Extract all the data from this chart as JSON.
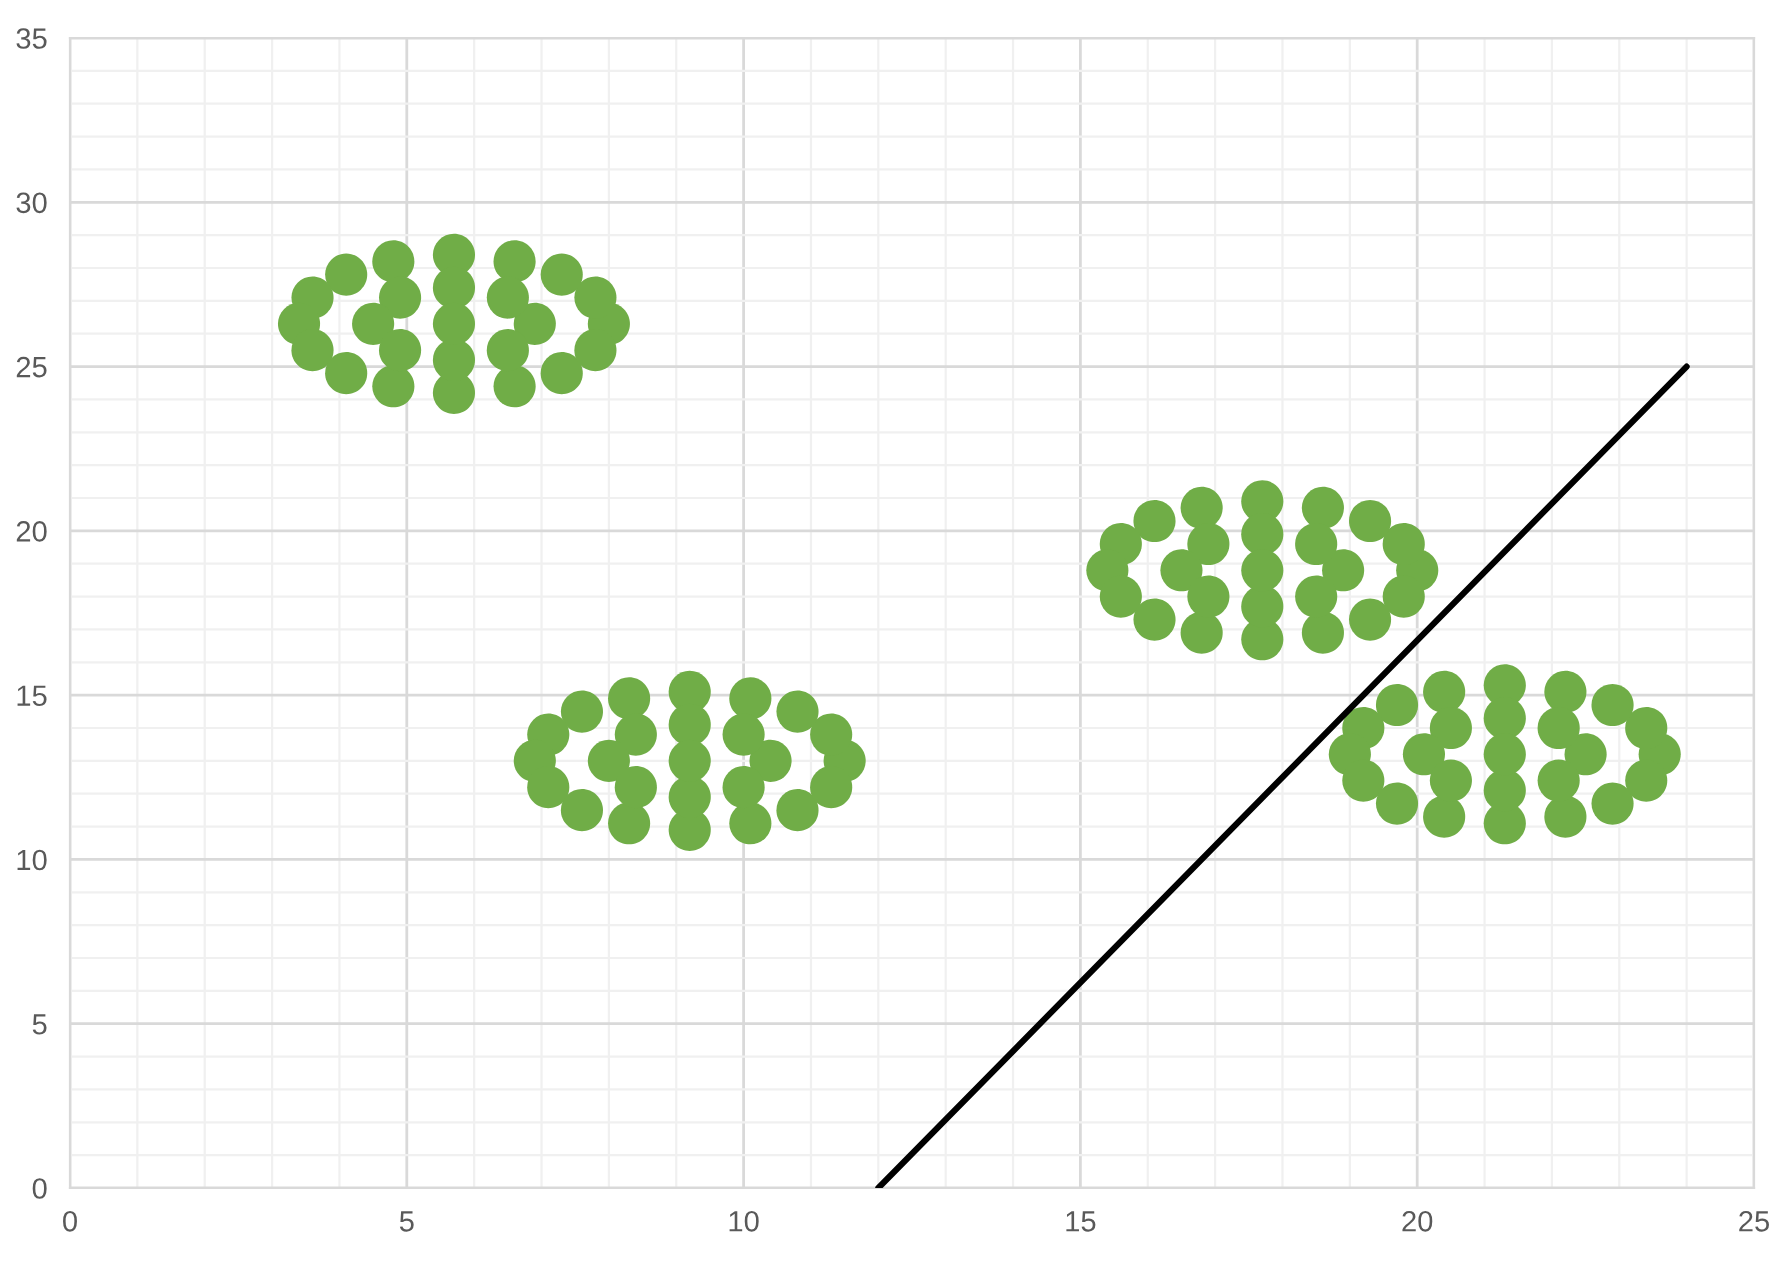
{
  "chart_data": {
    "type": "scatter",
    "xlim": [
      0,
      25
    ],
    "ylim": [
      0,
      35
    ],
    "xticks": [
      0,
      5,
      10,
      15,
      20,
      25
    ],
    "yticks": [
      0,
      5,
      10,
      15,
      20,
      25,
      30,
      35
    ],
    "grid": true,
    "marker": "circle",
    "series": [
      {
        "color": "#70ad47",
        "x": [
          8.0,
          7.8,
          7.3,
          6.6,
          5.7,
          4.8,
          4.1,
          3.6,
          3.4,
          3.6,
          4.1,
          4.8,
          5.7,
          6.6,
          7.3,
          7.8,
          6.9,
          6.5,
          5.7,
          4.9,
          4.5,
          4.9,
          5.7,
          6.5,
          5.7
        ],
        "values": [
          26.3,
          27.1,
          27.8,
          28.2,
          28.4,
          28.2,
          27.8,
          27.1,
          26.3,
          25.5,
          24.8,
          24.4,
          24.2,
          24.4,
          24.8,
          25.5,
          26.3,
          27.1,
          27.4,
          27.1,
          26.3,
          25.5,
          25.2,
          25.5,
          26.3
        ]
      },
      {
        "color": "#70ad47",
        "x": [
          11.5,
          11.3,
          10.8,
          10.1,
          9.2,
          8.3,
          7.6,
          7.1,
          6.9,
          7.1,
          7.6,
          8.3,
          9.2,
          10.1,
          10.8,
          11.3,
          10.4,
          10.0,
          9.2,
          8.4,
          8.0,
          8.4,
          9.2,
          10.0,
          9.2
        ],
        "values": [
          13.0,
          13.8,
          14.5,
          14.9,
          15.1,
          14.9,
          14.5,
          13.8,
          13.0,
          12.2,
          11.5,
          11.1,
          10.9,
          11.1,
          11.5,
          12.2,
          13.0,
          13.8,
          14.1,
          13.8,
          13.0,
          12.2,
          11.9,
          12.2,
          13.0
        ]
      },
      {
        "color": "#70ad47",
        "x": [
          20.0,
          19.8,
          19.3,
          18.6,
          17.7,
          16.8,
          16.1,
          15.6,
          15.4,
          15.6,
          16.1,
          16.8,
          17.7,
          18.6,
          19.3,
          19.8,
          18.9,
          18.5,
          17.7,
          16.9,
          16.5,
          16.9,
          17.7,
          18.5,
          17.7
        ],
        "values": [
          18.8,
          19.6,
          20.3,
          20.7,
          20.9,
          20.7,
          20.3,
          19.6,
          18.8,
          18.0,
          17.3,
          16.9,
          16.7,
          16.9,
          17.3,
          18.0,
          18.8,
          19.6,
          19.9,
          19.6,
          18.8,
          18.0,
          17.7,
          18.0,
          18.8
        ]
      },
      {
        "color": "#70ad47",
        "x": [
          23.6,
          23.4,
          22.9,
          22.2,
          21.3,
          20.4,
          19.7,
          19.2,
          19.0,
          19.2,
          19.7,
          20.4,
          21.3,
          22.2,
          22.9,
          23.4,
          22.5,
          22.1,
          21.3,
          20.5,
          20.1,
          20.5,
          21.3,
          22.1,
          21.3
        ],
        "values": [
          13.2,
          14.0,
          14.7,
          15.1,
          15.3,
          15.1,
          14.7,
          14.0,
          13.2,
          12.4,
          11.7,
          11.3,
          11.1,
          11.3,
          11.7,
          12.4,
          13.2,
          14.0,
          14.3,
          14.0,
          13.2,
          12.4,
          12.1,
          12.4,
          13.2
        ]
      },
      {
        "type": "line",
        "color": "#000000",
        "line_style": "solid",
        "marker": "none",
        "x": [
          12,
          24
        ],
        "values": [
          0,
          25
        ]
      }
    ]
  }
}
